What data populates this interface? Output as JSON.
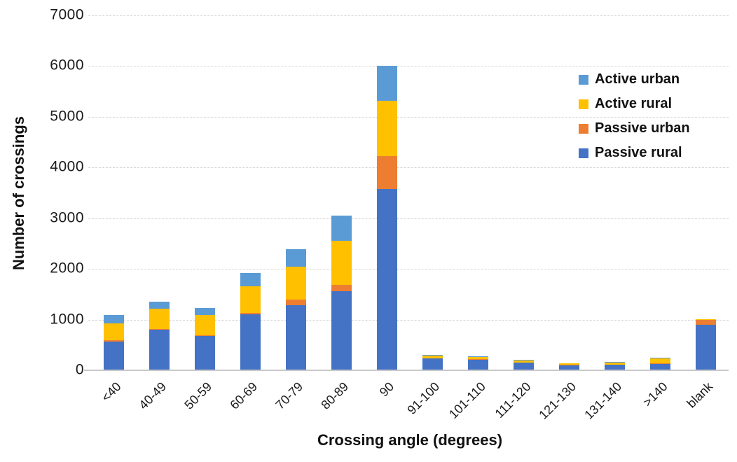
{
  "chart_data": {
    "type": "bar",
    "stacked": true,
    "title": "",
    "xlabel": "Crossing angle (degrees)",
    "ylabel": "Number of crossings",
    "ylim": [
      0,
      7000
    ],
    "ytick_interval": 1000,
    "yticks": [
      0,
      1000,
      2000,
      3000,
      4000,
      5000,
      6000,
      7000
    ],
    "grid": "horizontal-dashed",
    "categories": [
      "<40",
      "40-49",
      "50-59",
      "60-69",
      "70-79",
      "80-89",
      "90",
      "91-100",
      "101-110",
      "111-120",
      "121-130",
      "131-140",
      ">140",
      "blank"
    ],
    "series": [
      {
        "name": "Passive rural",
        "color": "#4472C4",
        "values": [
          570,
          800,
          670,
          1100,
          1290,
          1560,
          3570,
          230,
          210,
          150,
          100,
          110,
          130,
          900
        ]
      },
      {
        "name": "Passive urban",
        "color": "#ED7D31",
        "values": [
          20,
          15,
          15,
          35,
          100,
          120,
          650,
          10,
          10,
          5,
          5,
          5,
          5,
          90
        ]
      },
      {
        "name": "Active rural",
        "color": "#FFC000",
        "values": [
          340,
          400,
          400,
          520,
          650,
          870,
          1090,
          50,
          40,
          40,
          30,
          40,
          100,
          15
        ]
      },
      {
        "name": "Active urban",
        "color": "#5B9BD5",
        "values": [
          160,
          145,
          145,
          270,
          350,
          500,
          690,
          20,
          20,
          15,
          10,
          15,
          15,
          10
        ]
      }
    ],
    "totals": [
      1090,
      1360,
      1230,
      1925,
      2390,
      3050,
      6000,
      310,
      280,
      210,
      145,
      170,
      250,
      1015
    ],
    "legend": {
      "position": "top-right-inside",
      "entries": [
        "Active urban",
        "Active rural",
        "Passive urban",
        "Passive rural"
      ]
    }
  }
}
